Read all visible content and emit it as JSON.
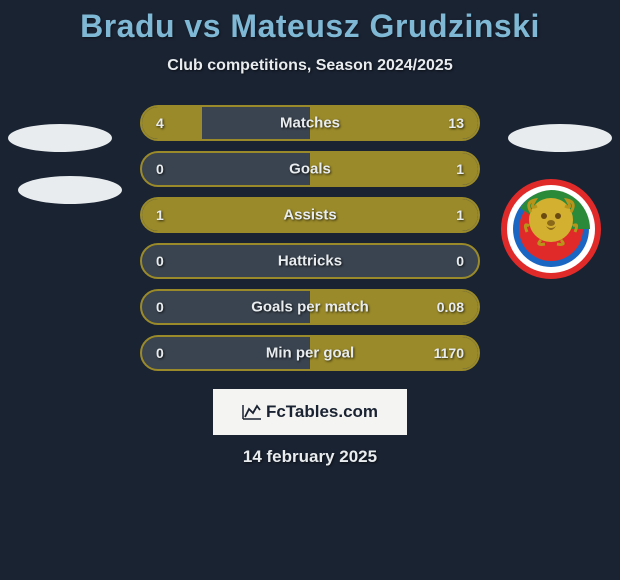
{
  "title": "Bradu vs Mateusz Grudzinski",
  "subtitle": "Club competitions, Season 2024/2025",
  "date": "14 february 2025",
  "logo_text": "FcTables.com",
  "colors": {
    "background": "#1a2332",
    "title_color": "#7fb8d4",
    "text_color": "#e8ecef",
    "bar_fill": "#9a8a2a",
    "bar_bg": "#3a4450",
    "ellipse": "#e8ecef",
    "logo_bg": "#f4f4f2"
  },
  "badge": {
    "ring_colors": [
      "#e02a2a",
      "#ffffff",
      "#1a66c2"
    ],
    "inner_green": "#2a8a3a",
    "gold": "#d4b030",
    "lion": "#d4b030"
  },
  "stats": [
    {
      "label": "Matches",
      "left_val": "4",
      "right_val": "13",
      "left_pct": 18,
      "right_pct": 50
    },
    {
      "label": "Goals",
      "left_val": "0",
      "right_val": "1",
      "left_pct": 0,
      "right_pct": 50
    },
    {
      "label": "Assists",
      "left_val": "1",
      "right_val": "1",
      "left_pct": 50,
      "right_pct": 50
    },
    {
      "label": "Hattricks",
      "left_val": "0",
      "right_val": "0",
      "left_pct": 0,
      "right_pct": 0
    },
    {
      "label": "Goals per match",
      "left_val": "0",
      "right_val": "0.08",
      "left_pct": 0,
      "right_pct": 50
    },
    {
      "label": "Min per goal",
      "left_val": "0",
      "right_val": "1170",
      "left_pct": 0,
      "right_pct": 50
    }
  ]
}
